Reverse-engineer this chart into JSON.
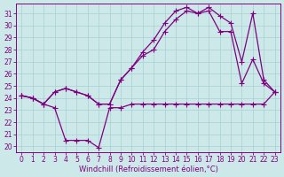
{
  "xlabel": "Windchill (Refroidissement éolien,°C)",
  "background_color": "#cce8e8",
  "line_color": "#800080",
  "ylim": [
    19.5,
    31.8
  ],
  "xlim": [
    -0.5,
    23.5
  ],
  "yticks": [
    20,
    21,
    22,
    23,
    24,
    25,
    26,
    27,
    28,
    29,
    30,
    31
  ],
  "xticks": [
    0,
    1,
    2,
    3,
    4,
    5,
    6,
    7,
    8,
    9,
    10,
    11,
    12,
    13,
    14,
    15,
    16,
    17,
    18,
    19,
    20,
    21,
    22,
    23
  ],
  "line1_x": [
    0,
    1,
    2,
    3,
    4,
    5,
    6,
    7,
    8,
    9,
    10,
    11,
    12,
    13,
    14,
    15,
    16,
    17,
    18,
    19,
    20,
    21,
    22,
    23
  ],
  "line1_y": [
    24.2,
    24.0,
    23.5,
    23.2,
    20.5,
    20.5,
    20.5,
    19.9,
    23.2,
    23.2,
    23.5,
    23.5,
    23.5,
    23.5,
    23.5,
    23.5,
    23.5,
    23.5,
    23.5,
    23.5,
    23.5,
    23.5,
    23.5,
    24.5
  ],
  "line2_x": [
    0,
    1,
    2,
    3,
    4,
    5,
    6,
    7,
    8,
    9,
    10,
    11,
    12,
    13,
    14,
    15,
    16,
    17,
    18,
    19,
    20,
    21,
    22,
    23
  ],
  "line2_y": [
    24.2,
    24.0,
    23.5,
    24.5,
    24.8,
    24.5,
    24.2,
    23.5,
    23.5,
    25.5,
    26.5,
    27.5,
    28.0,
    29.5,
    30.5,
    31.2,
    31.0,
    31.2,
    29.5,
    29.5,
    25.2,
    27.2,
    25.2,
    24.5
  ],
  "line3_x": [
    0,
    1,
    2,
    3,
    4,
    5,
    6,
    7,
    8,
    9,
    10,
    11,
    12,
    13,
    14,
    15,
    16,
    17,
    18,
    19,
    20,
    21,
    22,
    23
  ],
  "line3_y": [
    24.2,
    24.0,
    23.5,
    24.5,
    24.8,
    24.5,
    24.2,
    23.5,
    23.5,
    25.5,
    26.5,
    27.8,
    28.8,
    30.2,
    31.2,
    31.5,
    31.0,
    31.5,
    30.8,
    30.2,
    27.0,
    31.0,
    25.5,
    24.5
  ],
  "grid_color": "#a8d0d0",
  "marker": "+",
  "markersize": 4,
  "linewidth": 0.9,
  "tick_fontsize": 5.5,
  "xlabel_fontsize": 6.0
}
